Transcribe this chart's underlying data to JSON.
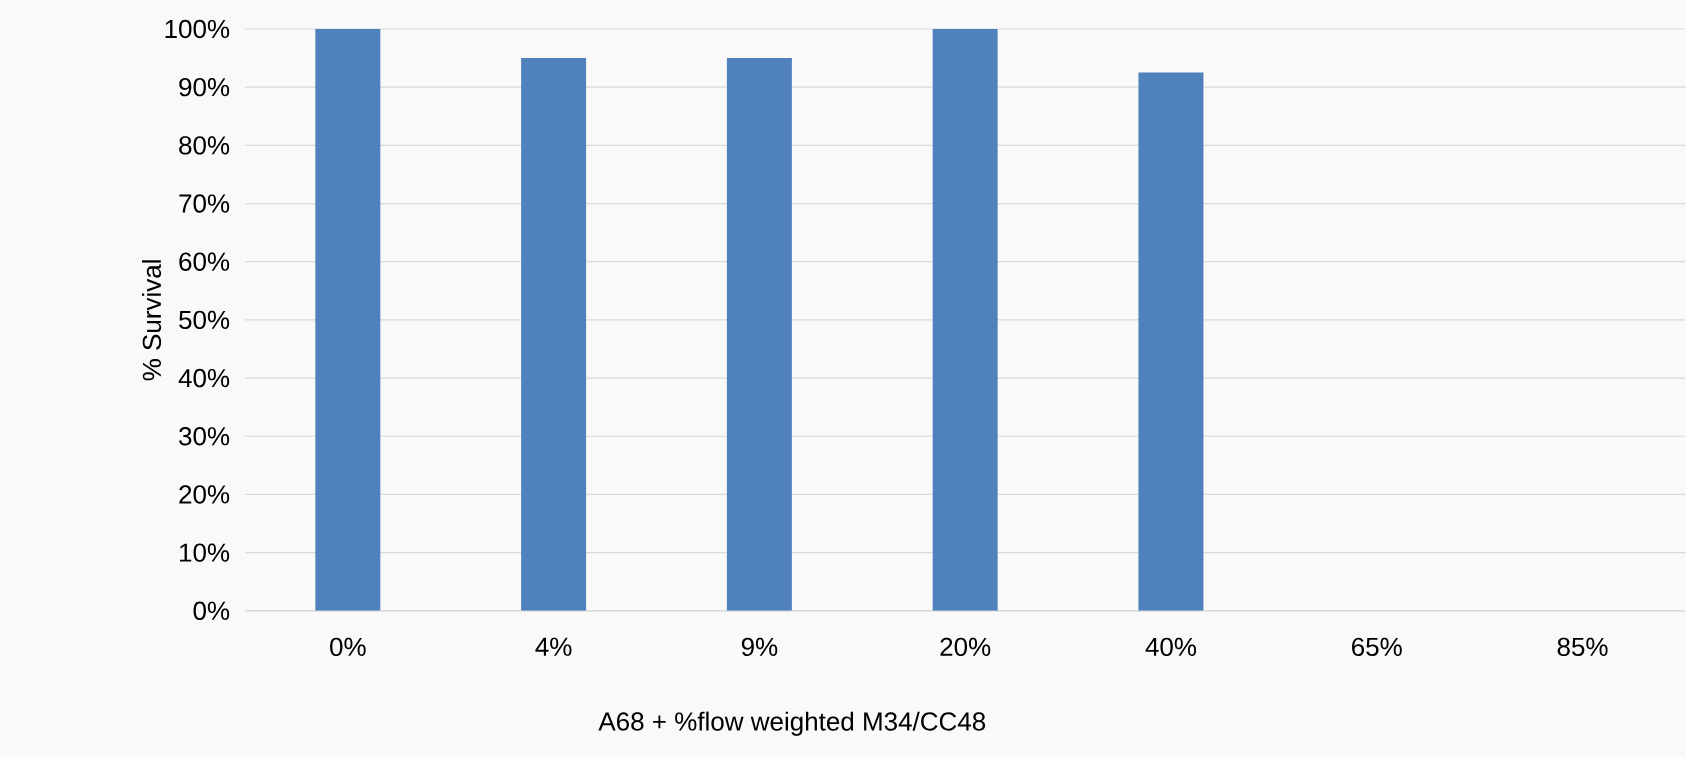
{
  "chart_data": {
    "type": "bar",
    "xlabel": "A68 + %flow weighted M34/CC48",
    "ylabel": "% Survival",
    "categories": [
      "0%",
      "4%",
      "9%",
      "20%",
      "40%",
      "65%",
      "85%"
    ],
    "values": [
      100,
      95,
      95,
      100,
      92.5,
      0,
      0
    ],
    "color": "#4f81bd",
    "ylim": [
      0,
      100
    ],
    "yticks": [
      {
        "value": 0,
        "label": "0%"
      },
      {
        "value": 10,
        "label": "10%"
      },
      {
        "value": 20,
        "label": "20%"
      },
      {
        "value": 30,
        "label": "30%"
      },
      {
        "value": 40,
        "label": "40%"
      },
      {
        "value": 50,
        "label": "50%"
      },
      {
        "value": 60,
        "label": "60%"
      },
      {
        "value": 70,
        "label": "70%"
      },
      {
        "value": 80,
        "label": "80%"
      },
      {
        "value": 90,
        "label": "90%"
      },
      {
        "value": 100,
        "label": "100%"
      }
    ],
    "grid": "y"
  }
}
